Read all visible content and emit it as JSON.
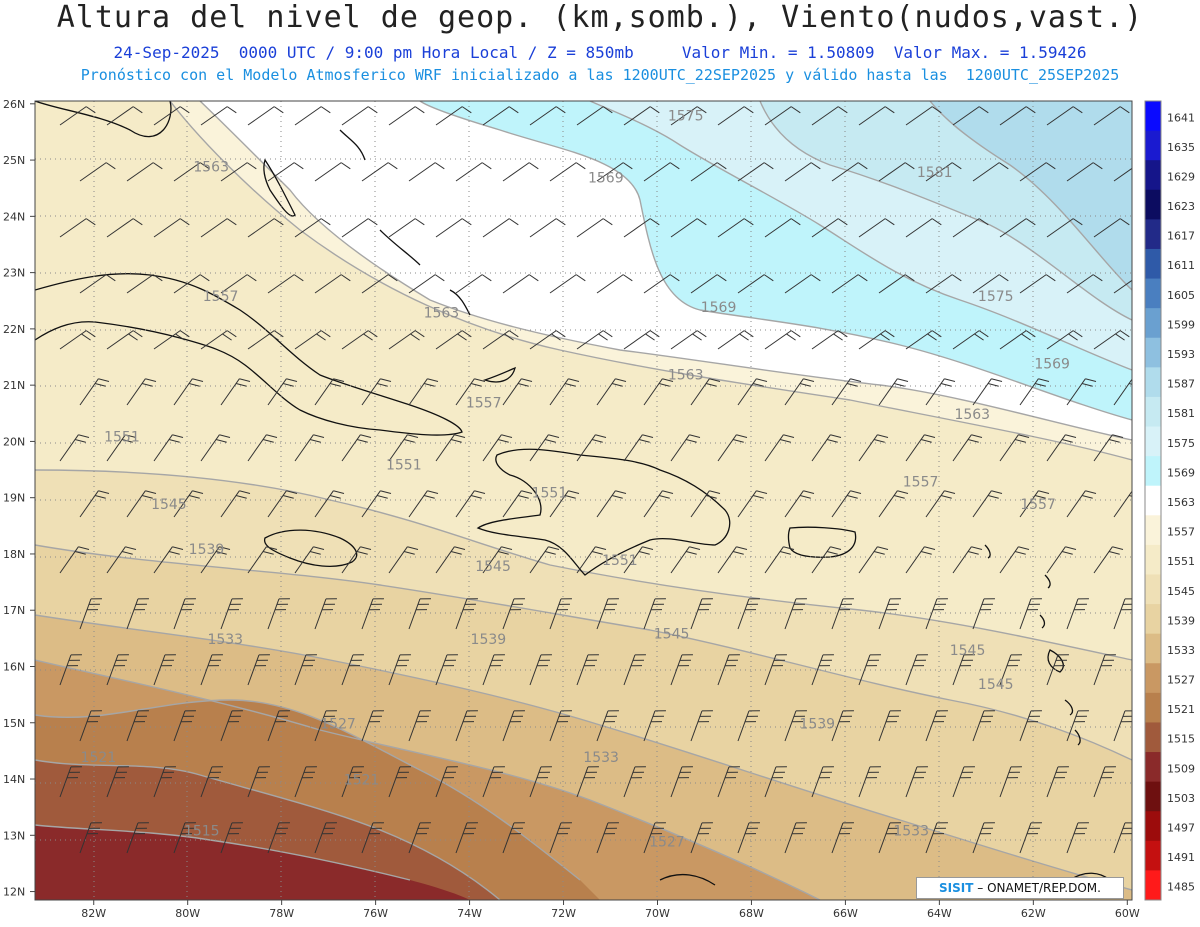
{
  "title": "Altura del nivel de geop. (km,somb.), Viento(nudos,vast.)",
  "subtitle1": "24-Sep-2025  0000 UTC / 9:00 pm Hora Local / Z = 850mb     Valor Min. = 1.50809  Valor Max. = 1.59426",
  "subtitle2": "Pronóstico con el Modelo Atmosferico WRF inicializado a las 1200UTC_22SEP2025 y válido hasta las  1200UTC_25SEP2025",
  "credit": {
    "logo": "SISIT",
    "text": "– ONAMET/REP.DOM."
  },
  "axes": {
    "lat_labels": [
      "26N",
      "25N",
      "24N",
      "23N",
      "22N",
      "21N",
      "20N",
      "19N",
      "18N",
      "17N",
      "16N",
      "15N",
      "14N",
      "13N",
      "12N"
    ],
    "lon_labels": [
      "82W",
      "80W",
      "78W",
      "76W",
      "74W",
      "72W",
      "70W",
      "68W",
      "66W",
      "64W",
      "62W",
      "60W"
    ]
  },
  "colorbar": {
    "levels": [
      "1641",
      "1635",
      "1629",
      "1623",
      "1617",
      "1611",
      "1605",
      "1599",
      "1593",
      "1587",
      "1581",
      "1575",
      "1569",
      "1563",
      "1557",
      "1551",
      "1545",
      "1539",
      "1533",
      "1527",
      "1521",
      "1515",
      "1509",
      "1503",
      "1497",
      "1491",
      "1485"
    ],
    "colors": [
      "#0a0aff",
      "#1a1ad0",
      "#15158a",
      "#0c0c60",
      "#222a88",
      "#2f5aa8",
      "#4a7fc0",
      "#6aa0d0",
      "#8ec0e0",
      "#b0dcec",
      "#c6eaf2",
      "#d8f2f8",
      "#bff4fb",
      "#ffffff",
      "#faf3da",
      "#f5ebc8",
      "#efe0b6",
      "#e8d3a2",
      "#dcbc86",
      "#c99863",
      "#b8804d",
      "#a05a3c",
      "#8a2a2a",
      "#6e1010",
      "#9c0c0c",
      "#c41010",
      "#ff1a1a"
    ]
  },
  "contour_labels": [
    {
      "text": "1575",
      "lon": -69.4,
      "lat": 25.7
    },
    {
      "text": "1569",
      "lon": -71.1,
      "lat": 24.6
    },
    {
      "text": "1581",
      "lon": -64.1,
      "lat": 24.7
    },
    {
      "text": "1563",
      "lon": -79.5,
      "lat": 24.8
    },
    {
      "text": "1575",
      "lon": -62.8,
      "lat": 22.5
    },
    {
      "text": "1569",
      "lon": -68.7,
      "lat": 22.3
    },
    {
      "text": "1557",
      "lon": -79.3,
      "lat": 22.5
    },
    {
      "text": "1563",
      "lon": -74.6,
      "lat": 22.2
    },
    {
      "text": "1569",
      "lon": -61.6,
      "lat": 21.3
    },
    {
      "text": "1563",
      "lon": -69.4,
      "lat": 21.1
    },
    {
      "text": "1563",
      "lon": -63.3,
      "lat": 20.4
    },
    {
      "text": "1557",
      "lon": -73.7,
      "lat": 20.6
    },
    {
      "text": "1551",
      "lon": -81.4,
      "lat": 20.0
    },
    {
      "text": "1551",
      "lon": -75.4,
      "lat": 19.5
    },
    {
      "text": "1557",
      "lon": -64.4,
      "lat": 19.2
    },
    {
      "text": "1551",
      "lon": -72.3,
      "lat": 19.0
    },
    {
      "text": "1557",
      "lon": -61.9,
      "lat": 18.8
    },
    {
      "text": "1545",
      "lon": -80.4,
      "lat": 18.8
    },
    {
      "text": "1539",
      "lon": -79.6,
      "lat": 18.0
    },
    {
      "text": "1545",
      "lon": -73.5,
      "lat": 17.7
    },
    {
      "text": "1551",
      "lon": -70.8,
      "lat": 17.8
    },
    {
      "text": "1545",
      "lon": -69.7,
      "lat": 16.5
    },
    {
      "text": "1539",
      "lon": -73.6,
      "lat": 16.4
    },
    {
      "text": "1533",
      "lon": -79.2,
      "lat": 16.4
    },
    {
      "text": "1545",
      "lon": -63.4,
      "lat": 16.2
    },
    {
      "text": "1545",
      "lon": -62.8,
      "lat": 15.6
    },
    {
      "text": "1527",
      "lon": -76.8,
      "lat": 14.9
    },
    {
      "text": "1539",
      "lon": -66.6,
      "lat": 14.9
    },
    {
      "text": "1521",
      "lon": -81.9,
      "lat": 14.3
    },
    {
      "text": "1533",
      "lon": -71.2,
      "lat": 14.3
    },
    {
      "text": "1521",
      "lon": -76.3,
      "lat": 13.9
    },
    {
      "text": "1515",
      "lon": -79.7,
      "lat": 13.0
    },
    {
      "text": "1527",
      "lon": -69.8,
      "lat": 12.8
    },
    {
      "text": "1533",
      "lon": -64.6,
      "lat": 13.0
    }
  ]
}
